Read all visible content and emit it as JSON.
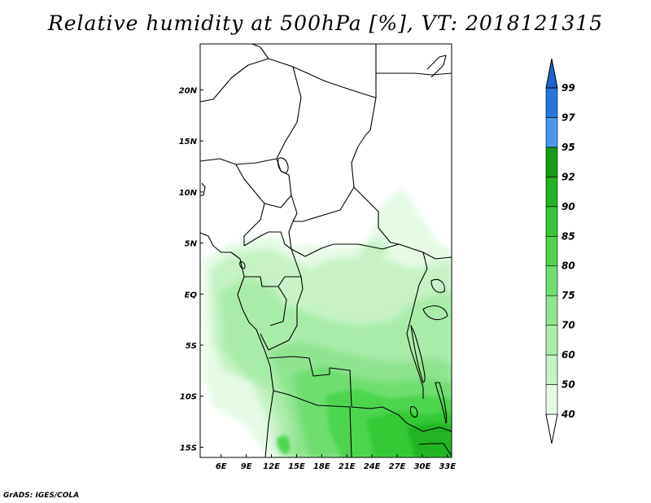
{
  "title": "Relative humidity at 500hPa [%], VT: 2018121315",
  "footer": "GrADS: IGES/COLA",
  "map": {
    "lon_range": [
      3.5,
      33.5
    ],
    "lat_range": [
      -16.0,
      24.5
    ],
    "lon_ticks": [
      {
        "value": 6,
        "label": "6E"
      },
      {
        "value": 9,
        "label": "9E"
      },
      {
        "value": 12,
        "label": "12E"
      },
      {
        "value": 15,
        "label": "15E"
      },
      {
        "value": 18,
        "label": "18E"
      },
      {
        "value": 21,
        "label": "21E"
      },
      {
        "value": 24,
        "label": "24E"
      },
      {
        "value": 27,
        "label": "27E"
      },
      {
        "value": 30,
        "label": "30E"
      },
      {
        "value": 33,
        "label": "33E"
      }
    ],
    "lat_ticks": [
      {
        "value": 20,
        "label": "20N"
      },
      {
        "value": 15,
        "label": "15N"
      },
      {
        "value": 10,
        "label": "10N"
      },
      {
        "value": 5,
        "label": "5N"
      },
      {
        "value": 0,
        "label": "EQ"
      },
      {
        "value": -5,
        "label": "5S"
      },
      {
        "value": -10,
        "label": "10S"
      },
      {
        "value": -15,
        "label": "15S"
      }
    ],
    "boundary_color": "#000000"
  },
  "colorbar": {
    "labels": [
      "40",
      "50",
      "60",
      "70",
      "75",
      "80",
      "85",
      "90",
      "92",
      "95",
      "97",
      "99"
    ],
    "colors": [
      "#ffffff",
      "#e6fae6",
      "#c6f2c6",
      "#a8ecaa",
      "#8ee58e",
      "#6ede6e",
      "#4ed54e",
      "#34c934",
      "#20b420",
      "#129e12",
      "#4499ee",
      "#2277dd",
      "#1b62cc"
    ]
  }
}
